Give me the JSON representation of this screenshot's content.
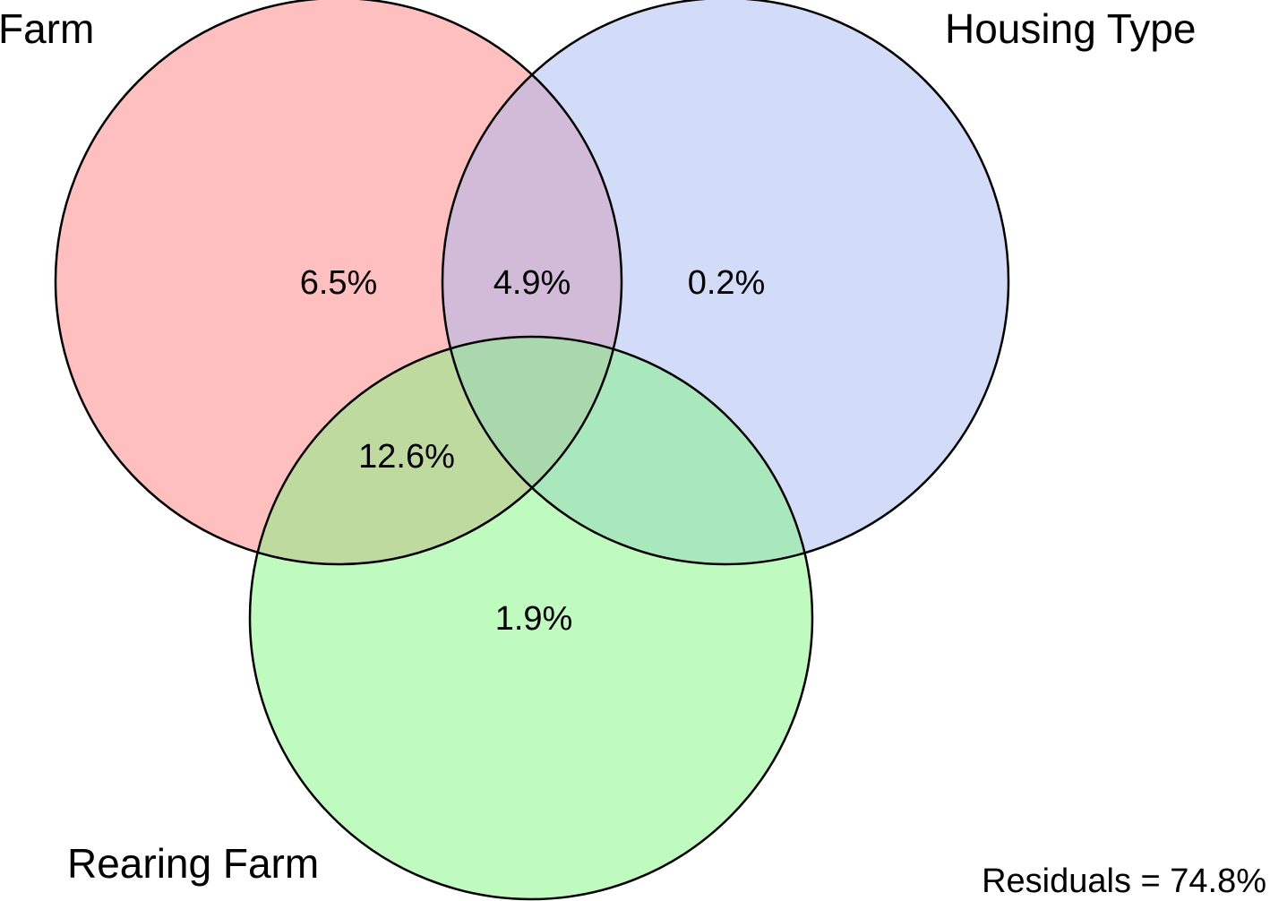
{
  "sets": [
    {
      "id": "farm",
      "label": "Farm",
      "color": "#ff8080",
      "opacity": 0.5
    },
    {
      "id": "housing",
      "label": "Housing Type",
      "color": "#a6b8f2",
      "opacity": 0.5
    },
    {
      "id": "rearing",
      "label": "Rearing Farm",
      "color": "#80f580",
      "opacity": 0.5
    }
  ],
  "regions": {
    "farm_only": "6.5%",
    "farm_housing": "4.9%",
    "housing_only": "0.2%",
    "farm_rearing": "12.6%",
    "rearing_only": "1.9%"
  },
  "residuals": "Residuals = 74.8%"
}
